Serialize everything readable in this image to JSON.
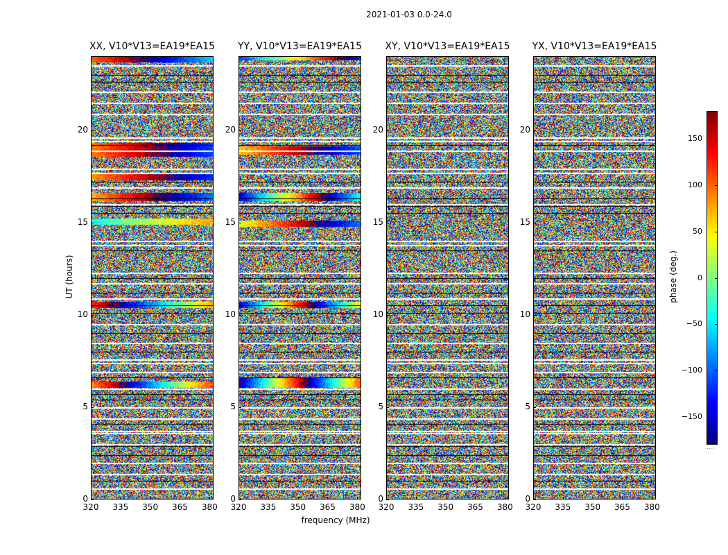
{
  "figure": {
    "suptitle": "2021-01-03 0.0-24.0",
    "xlabel": "frequency (MHz)",
    "ylabel": "UT (hours)",
    "colorbar_label": "phase (deg.)",
    "colorbar_footer": "....."
  },
  "chart_data": {
    "type": "heatmap",
    "colormap": "jet",
    "xlim": [
      320,
      382
    ],
    "ylim": [
      0,
      24
    ],
    "xticks": [
      320,
      335,
      350,
      365,
      380
    ],
    "yticks": [
      0,
      5,
      10,
      15,
      20
    ],
    "colorbar": {
      "vmin": -180,
      "vmax": 180,
      "ticks": [
        150,
        100,
        50,
        0,
        -50,
        -100,
        -150
      ]
    },
    "panels": [
      {
        "title": "XX, V10*V13=EA19*EA15",
        "polarization": "XX",
        "coherent_bands": [
          [
            23.7,
            24.0,
            100,
            5
          ],
          [
            19.3,
            18.6,
            90,
            4
          ],
          [
            17.6,
            17.3,
            80,
            4
          ],
          [
            16.6,
            16.2,
            70,
            5
          ],
          [
            15.2,
            14.9,
            -40,
            3
          ],
          [
            10.7,
            10.4,
            120,
            8
          ],
          [
            6.4,
            6.1,
            80,
            10
          ]
        ]
      },
      {
        "title": "YY, V10*V13=EA19*EA15",
        "polarization": "YY",
        "coherent_bands": [
          [
            23.8,
            24.0,
            -120,
            9
          ],
          [
            19.1,
            18.7,
            60,
            5
          ],
          [
            16.6,
            16.2,
            -150,
            12
          ],
          [
            15.1,
            14.8,
            30,
            6
          ],
          [
            10.7,
            10.4,
            -150,
            14
          ],
          [
            6.6,
            6.1,
            -170,
            16
          ]
        ]
      },
      {
        "title": "XY, V10*V13=EA19*EA15",
        "polarization": "XY",
        "coherent_bands": []
      },
      {
        "title": "YX, V10*V13=EA19*EA15",
        "polarization": "YX",
        "coherent_bands": []
      }
    ],
    "flagged_rows_white": [
      23.5,
      22.1,
      21.5,
      20.9,
      19.6,
      19.4,
      18.9,
      17.9,
      17.7,
      16.9,
      16.0,
      14.0,
      13.8,
      12.3,
      11.7,
      10.9,
      9.5,
      8.5,
      7.6,
      7.4,
      6.9,
      6.0,
      5.0,
      4.4,
      3.7,
      3.6,
      3.0,
      2.0,
      1.4,
      0.6
    ],
    "flagged_rows_black": [
      23.0,
      22.6,
      19.2,
      17.2,
      16.3,
      15.9,
      15.5,
      13.5,
      12.0,
      11.2,
      10.5,
      10.1,
      9.0,
      8.0,
      6.6,
      5.7,
      5.4,
      4.1,
      2.9,
      2.4,
      1.0
    ]
  }
}
